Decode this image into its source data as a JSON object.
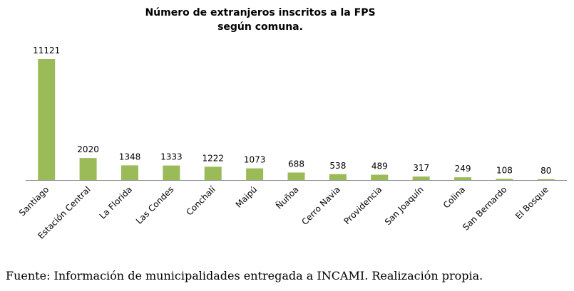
{
  "chart_data": {
    "type": "bar",
    "title_line1": "Número de extranjeros inscritos a la FPS",
    "title_line2": "según comuna.",
    "categories": [
      "Santiago",
      "Estación Central",
      "La Florida",
      "Las Condes",
      "Conchalí",
      "Maipú",
      "Ñuñoa",
      "Cerro Navia",
      "Providencia",
      "San Joaquín",
      "Colina",
      "San Bernardo",
      "El Bosque"
    ],
    "values": [
      11121,
      2020,
      1348,
      1333,
      1222,
      1073,
      688,
      538,
      489,
      317,
      249,
      108,
      80
    ],
    "bar_color": "#9bbb59",
    "grid": false,
    "legend": "none"
  },
  "caption": "Fuente: Información de municipalidades entregada a INCAMI. Realización propia."
}
